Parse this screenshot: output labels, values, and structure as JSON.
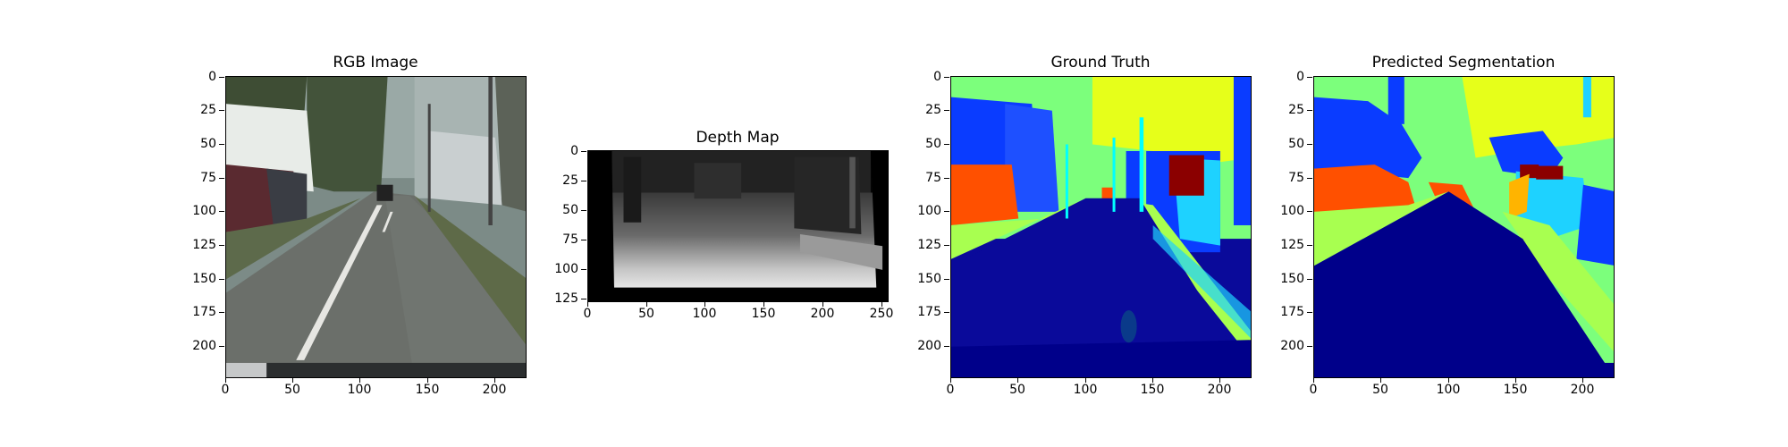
{
  "figure": {
    "panels": [
      {
        "id": "rgb",
        "title": "RGB Image",
        "xticks": [
          "0",
          "50",
          "100",
          "150",
          "200"
        ],
        "yticks": [
          "0",
          "25",
          "50",
          "75",
          "100",
          "125",
          "150",
          "175",
          "200"
        ]
      },
      {
        "id": "depth",
        "title": "Depth Map",
        "xticks": [
          "0",
          "50",
          "100",
          "150",
          "200",
          "250"
        ],
        "yticks": [
          "0",
          "25",
          "50",
          "75",
          "100",
          "125"
        ]
      },
      {
        "id": "gt",
        "title": "Ground Truth",
        "xticks": [
          "0",
          "50",
          "100",
          "150",
          "200"
        ],
        "yticks": [
          "0",
          "25",
          "50",
          "75",
          "100",
          "125",
          "150",
          "175",
          "200"
        ]
      },
      {
        "id": "pred",
        "title": "Predicted Segmentation",
        "xticks": [
          "0",
          "50",
          "100",
          "150",
          "200"
        ],
        "yticks": [
          "0",
          "25",
          "50",
          "75",
          "100",
          "125",
          "150",
          "175",
          "200"
        ]
      }
    ],
    "image_extent": {
      "rgb": [
        224,
        224
      ],
      "depth": [
        256,
        128
      ],
      "gt": [
        224,
        224
      ],
      "pred": [
        224,
        224
      ]
    },
    "colors": {
      "road": "#0a0a9a",
      "road_far": "#00008a",
      "sidewalk": "#a8ff50",
      "sky": "#e6ff1a",
      "vegetation": "#7cff7c",
      "building": "#0a3cff",
      "car": "#ff5000",
      "fence": "#1ed2ff",
      "pole": "#00ffff",
      "truck": "#8b0000"
    }
  }
}
